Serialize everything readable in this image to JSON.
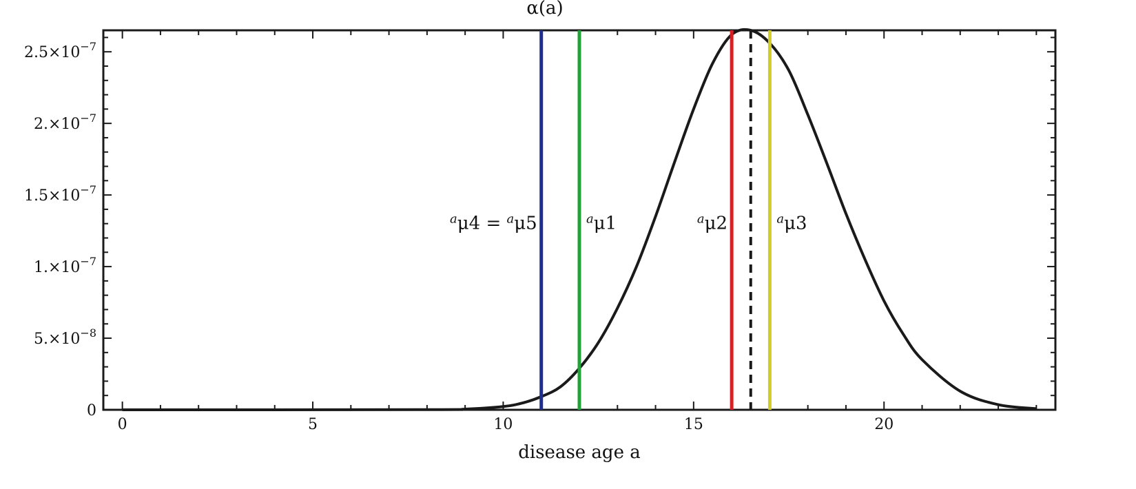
{
  "chart_data": {
    "type": "line",
    "title": "α(a)",
    "xlabel": "disease age a",
    "ylabel": "",
    "xlim": [
      -0.5,
      24.5
    ],
    "ylim": [
      0,
      2.65e-07
    ],
    "x_ticks": [
      {
        "value": 0,
        "label": "0"
      },
      {
        "value": 5,
        "label": "5"
      },
      {
        "value": 10,
        "label": "10"
      },
      {
        "value": 15,
        "label": "15"
      },
      {
        "value": 20,
        "label": "20"
      }
    ],
    "y_ticks": [
      {
        "value": 0,
        "mantissa": "0",
        "exp": ""
      },
      {
        "value": 5e-08,
        "mantissa": "5.×10",
        "exp": "−8"
      },
      {
        "value": 1e-07,
        "mantissa": "1.×10",
        "exp": "−7"
      },
      {
        "value": 1.5e-07,
        "mantissa": "1.5×10",
        "exp": "−7"
      },
      {
        "value": 2e-07,
        "mantissa": "2.×10",
        "exp": "−7"
      },
      {
        "value": 2.5e-07,
        "mantissa": "2.5×10",
        "exp": "−7"
      }
    ],
    "curve": {
      "color": "#1a1a1a",
      "x": [
        0,
        8,
        9,
        10,
        10.5,
        11,
        11.5,
        12,
        12.5,
        13,
        13.5,
        14,
        14.5,
        15,
        15.5,
        16,
        16.5,
        17,
        17.5,
        18,
        18.5,
        19,
        19.5,
        20,
        20.5,
        21,
        22,
        23,
        24
      ],
      "y": [
        0,
        1e-10,
        5e-10,
        2.3e-09,
        4.7e-09,
        9.2e-09,
        1.6e-08,
        2.9e-08,
        4.7e-08,
        7.1e-08,
        1e-07,
        1.35e-07,
        1.73e-07,
        2.1e-07,
        2.42e-07,
        2.62e-07,
        2.65e-07,
        2.56e-07,
        2.37e-07,
        2.06e-07,
        1.72e-07,
        1.37e-07,
        1.05e-07,
        7.6e-08,
        5.3e-08,
        3.5e-08,
        1.3e-08,
        3.6e-09,
        8e-10
      ]
    },
    "vertical_lines": [
      {
        "x": 11,
        "color": "#1f2f8f",
        "dashed": false,
        "label_base": "μ4 = ",
        "label_base2": "μ5",
        "label_side": "left"
      },
      {
        "x": 12,
        "color": "#22a33a",
        "dashed": false,
        "label_base": "μ1",
        "label_side": "right"
      },
      {
        "x": 16,
        "color": "#d81f26",
        "dashed": false,
        "label_base": "μ2",
        "label_side": "left"
      },
      {
        "x": 16.5,
        "color": "#1a1a1a",
        "dashed": true,
        "label_base": "",
        "label_side": "none"
      },
      {
        "x": 17,
        "color": "#d2cc2a",
        "dashed": false,
        "label_base": "μ3",
        "label_side": "right"
      }
    ],
    "label_superscript": "a",
    "label_y": 1.3e-07,
    "grid": false,
    "legend": "none"
  }
}
